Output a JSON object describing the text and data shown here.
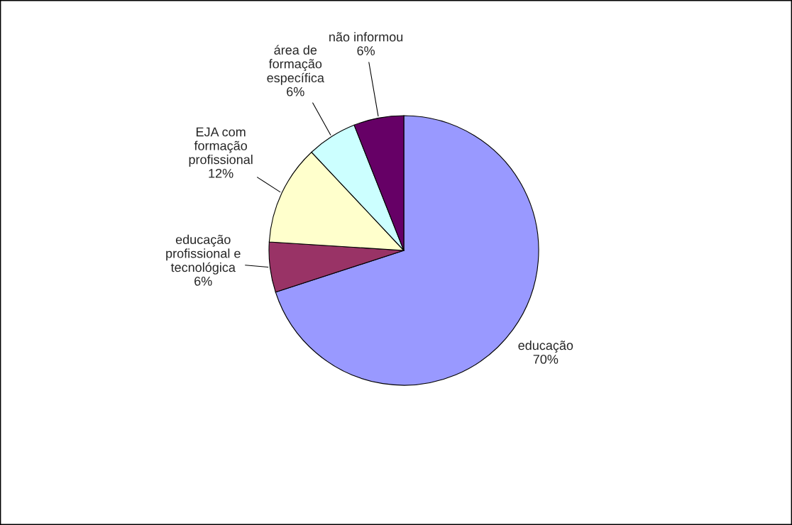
{
  "chart_data": {
    "type": "pie",
    "categories": [
      "educação",
      "educação profissional e tecnológica",
      "EJA com formação profissional",
      "área de formação específica",
      "não informou"
    ],
    "values": [
      70,
      6,
      12,
      6,
      6
    ],
    "value_labels": [
      "70%",
      "6%",
      "12%",
      "6%",
      "6%"
    ],
    "colors": [
      "#9999ff",
      "#993366",
      "#ffffcc",
      "#ccffff",
      "#660066"
    ],
    "legend": false
  }
}
